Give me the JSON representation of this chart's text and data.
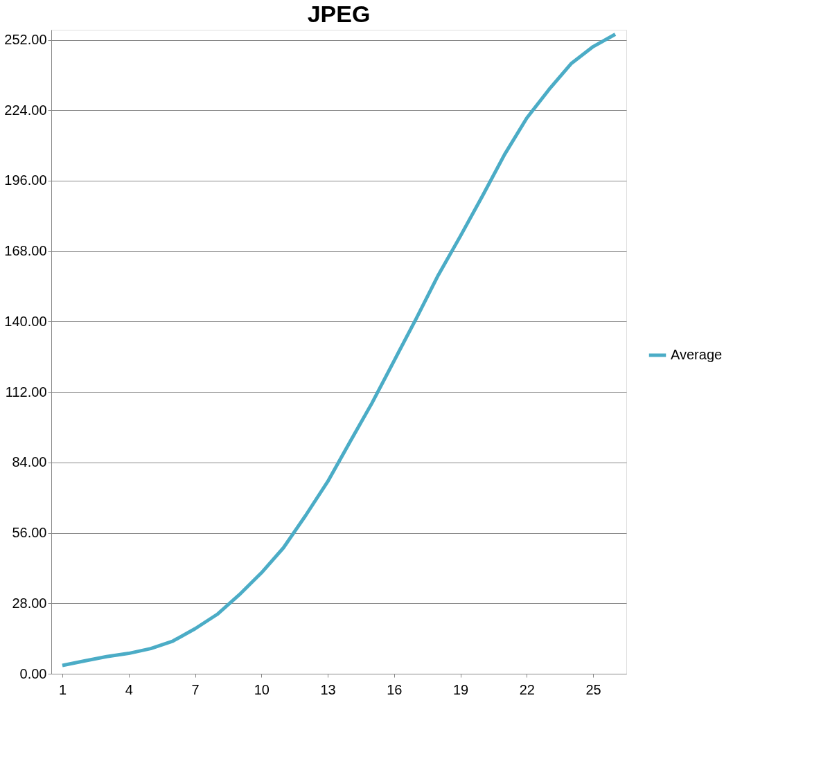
{
  "chart_data": {
    "type": "line",
    "title": "JPEG",
    "x": [
      1,
      2,
      3,
      4,
      5,
      6,
      7,
      8,
      9,
      10,
      11,
      12,
      13,
      14,
      15,
      16,
      17,
      18,
      19,
      20,
      21,
      22,
      23,
      24,
      25,
      26
    ],
    "series": [
      {
        "name": "Average",
        "color": "#4bacc6",
        "values": [
          3.3,
          5.1,
          6.8,
          8.1,
          10.0,
          13.0,
          17.9,
          23.6,
          31.4,
          40.1,
          50.1,
          62.9,
          76.4,
          92.1,
          107.6,
          124.4,
          141.2,
          158.5,
          174.0,
          190.0,
          206.5,
          220.9,
          232.2,
          242.5,
          249.3,
          254.2
        ]
      }
    ],
    "xlim": [
      0.5,
      26.5
    ],
    "xticks": [
      1,
      4,
      7,
      10,
      13,
      16,
      19,
      22,
      25
    ],
    "ylim": [
      0,
      256
    ],
    "yticks": [
      {
        "value": 0,
        "label": "0.00"
      },
      {
        "value": 28,
        "label": "28.00"
      },
      {
        "value": 56,
        "label": "56.00"
      },
      {
        "value": 84,
        "label": "84.00"
      },
      {
        "value": 112,
        "label": "112.00"
      },
      {
        "value": 140,
        "label": "140.00"
      },
      {
        "value": 168,
        "label": "168.00"
      },
      {
        "value": 196,
        "label": "196.00"
      },
      {
        "value": 224,
        "label": "224.00"
      },
      {
        "value": 252,
        "label": "252.00"
      }
    ],
    "grid": "y",
    "legend": "right",
    "marker": "none",
    "line_style": "solid"
  }
}
